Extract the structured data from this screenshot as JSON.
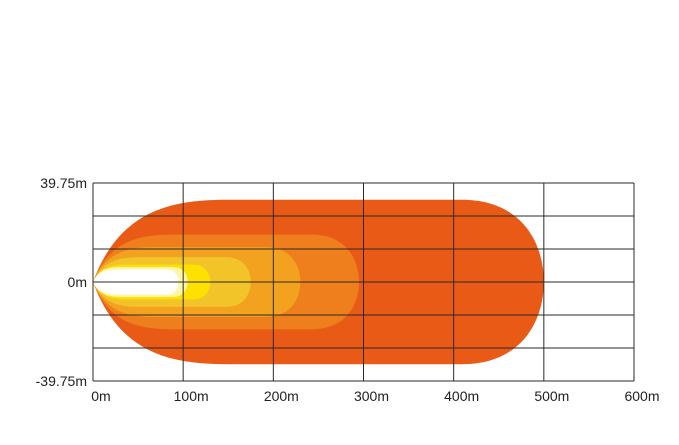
{
  "chart_data": {
    "type": "heatmap",
    "title": "",
    "xlabel": "",
    "ylabel": "",
    "x_ticks": [
      "0m",
      "100m",
      "200m",
      "300m",
      "400m",
      "500m",
      "600m"
    ],
    "y_ticks": [
      "39.75m",
      "0m",
      "-39.75m"
    ],
    "xlim": [
      0,
      600
    ],
    "ylim": [
      -39.75,
      39.75
    ],
    "grid": true,
    "legend": "none",
    "zones": [
      {
        "reach_m": 500,
        "max_half_width_m": 33,
        "color": "#e85a16"
      },
      {
        "reach_m": 295,
        "max_half_width_m": 19,
        "color": "#ee7f1c"
      },
      {
        "reach_m": 230,
        "max_half_width_m": 14,
        "color": "#f2a21e"
      },
      {
        "reach_m": 175,
        "max_half_width_m": 10,
        "color": "#f3c32a"
      },
      {
        "reach_m": 130,
        "max_half_width_m": 7,
        "color": "#ffe100"
      },
      {
        "reach_m": 105,
        "max_half_width_m": 6,
        "color": "#fff6a8"
      },
      {
        "reach_m": 95,
        "max_half_width_m": 5,
        "color": "#ffffff"
      }
    ]
  }
}
